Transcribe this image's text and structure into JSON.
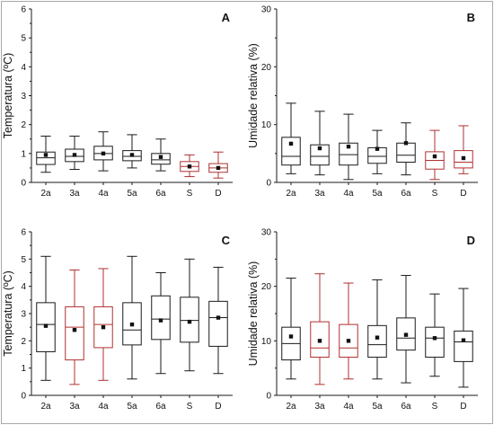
{
  "colors": {
    "black": "#1a1a1a",
    "red": "#b03030",
    "axis": "#1a1a1a",
    "mean": "#111111"
  },
  "chart_data": [
    {
      "type": "box",
      "panel_label": "A",
      "ylabel": "Temperatura (ºC)",
      "ylim": [
        0,
        6
      ],
      "yticks": [
        0,
        1,
        2,
        3,
        4,
        5,
        6
      ],
      "categories": [
        "2a",
        "3a",
        "4a",
        "5a",
        "6a",
        "S",
        "D"
      ],
      "box_colors": [
        "black",
        "black",
        "black",
        "black",
        "black",
        "red",
        "red"
      ],
      "boxes": [
        {
          "whisker_low": 0.35,
          "q1": 0.62,
          "median": 0.85,
          "q3": 1.05,
          "whisker_high": 1.6,
          "mean": 0.95
        },
        {
          "whisker_low": 0.45,
          "q1": 0.72,
          "median": 0.9,
          "q3": 1.15,
          "whisker_high": 1.6,
          "mean": 0.95
        },
        {
          "whisker_low": 0.4,
          "q1": 0.78,
          "median": 1.0,
          "q3": 1.25,
          "whisker_high": 1.75,
          "mean": 1.0
        },
        {
          "whisker_low": 0.5,
          "q1": 0.75,
          "median": 0.9,
          "q3": 1.1,
          "whisker_high": 1.65,
          "mean": 0.95
        },
        {
          "whisker_low": 0.4,
          "q1": 0.63,
          "median": 0.78,
          "q3": 1.0,
          "whisker_high": 1.5,
          "mean": 0.88
        },
        {
          "whisker_low": 0.2,
          "q1": 0.38,
          "median": 0.55,
          "q3": 0.72,
          "whisker_high": 0.95,
          "mean": 0.55
        },
        {
          "whisker_low": 0.15,
          "q1": 0.35,
          "median": 0.5,
          "q3": 0.65,
          "whisker_high": 1.05,
          "mean": 0.5
        }
      ]
    },
    {
      "type": "box",
      "panel_label": "B",
      "ylabel": "Umidade relativa (%)",
      "ylim": [
        0,
        30
      ],
      "yticks": [
        0,
        10,
        20,
        30
      ],
      "categories": [
        "2a",
        "3a",
        "4a",
        "5a",
        "6a",
        "S",
        "D"
      ],
      "box_colors": [
        "black",
        "black",
        "black",
        "black",
        "black",
        "red",
        "red"
      ],
      "boxes": [
        {
          "whisker_low": 1.5,
          "q1": 3.0,
          "median": 4.5,
          "q3": 7.8,
          "whisker_high": 13.7,
          "mean": 6.7
        },
        {
          "whisker_low": 1.3,
          "q1": 3.0,
          "median": 4.5,
          "q3": 6.5,
          "whisker_high": 12.3,
          "mean": 5.9
        },
        {
          "whisker_low": 0.5,
          "q1": 3.0,
          "median": 4.8,
          "q3": 6.8,
          "whisker_high": 11.8,
          "mean": 6.2
        },
        {
          "whisker_low": 1.5,
          "q1": 3.3,
          "median": 4.5,
          "q3": 6.0,
          "whisker_high": 9.0,
          "mean": 5.8
        },
        {
          "whisker_low": 1.3,
          "q1": 3.5,
          "median": 4.7,
          "q3": 6.8,
          "whisker_high": 10.3,
          "mean": 6.8
        },
        {
          "whisker_low": 0.5,
          "q1": 2.3,
          "median": 3.8,
          "q3": 5.3,
          "whisker_high": 9.0,
          "mean": 4.5
        },
        {
          "whisker_low": 1.5,
          "q1": 2.5,
          "median": 3.5,
          "q3": 5.5,
          "whisker_high": 9.8,
          "mean": 4.2
        }
      ]
    },
    {
      "type": "box",
      "panel_label": "C",
      "ylabel": "Temperatura (ºC)",
      "ylim": [
        0,
        6
      ],
      "yticks": [
        0,
        1,
        2,
        3,
        4,
        5,
        6
      ],
      "categories": [
        "2a",
        "3a",
        "4a",
        "5a",
        "6a",
        "S",
        "D"
      ],
      "box_colors": [
        "black",
        "red",
        "red",
        "black",
        "black",
        "black",
        "black"
      ],
      "boxes": [
        {
          "whisker_low": 0.55,
          "q1": 1.6,
          "median": 2.6,
          "q3": 3.4,
          "whisker_high": 5.1,
          "mean": 2.55
        },
        {
          "whisker_low": 0.4,
          "q1": 1.3,
          "median": 2.5,
          "q3": 3.25,
          "whisker_high": 4.6,
          "mean": 2.4
        },
        {
          "whisker_low": 0.55,
          "q1": 1.75,
          "median": 2.6,
          "q3": 3.25,
          "whisker_high": 4.65,
          "mean": 2.5
        },
        {
          "whisker_low": 0.6,
          "q1": 1.85,
          "median": 2.4,
          "q3": 3.4,
          "whisker_high": 5.1,
          "mean": 2.6
        },
        {
          "whisker_low": 0.8,
          "q1": 2.05,
          "median": 2.8,
          "q3": 3.65,
          "whisker_high": 4.5,
          "mean": 2.75
        },
        {
          "whisker_low": 0.9,
          "q1": 1.95,
          "median": 2.75,
          "q3": 3.6,
          "whisker_high": 5.0,
          "mean": 2.7
        },
        {
          "whisker_low": 0.8,
          "q1": 1.8,
          "median": 2.85,
          "q3": 3.45,
          "whisker_high": 4.7,
          "mean": 2.85
        }
      ]
    },
    {
      "type": "box",
      "panel_label": "D",
      "ylabel": "Umidade relativa (%)",
      "ylim": [
        0,
        30
      ],
      "yticks": [
        0,
        10,
        20,
        30
      ],
      "categories": [
        "2a",
        "3a",
        "4a",
        "5a",
        "6a",
        "S",
        "D"
      ],
      "box_colors": [
        "black",
        "red",
        "red",
        "black",
        "black",
        "black",
        "black"
      ],
      "boxes": [
        {
          "whisker_low": 3.0,
          "q1": 6.5,
          "median": 9.5,
          "q3": 12.5,
          "whisker_high": 21.5,
          "mean": 10.8
        },
        {
          "whisker_low": 2.0,
          "q1": 7.0,
          "median": 8.7,
          "q3": 13.5,
          "whisker_high": 22.3,
          "mean": 10.0
        },
        {
          "whisker_low": 3.0,
          "q1": 7.0,
          "median": 8.7,
          "q3": 13.0,
          "whisker_high": 20.6,
          "mean": 10.0
        },
        {
          "whisker_low": 3.0,
          "q1": 7.0,
          "median": 9.3,
          "q3": 12.8,
          "whisker_high": 21.2,
          "mean": 10.6
        },
        {
          "whisker_low": 2.3,
          "q1": 8.3,
          "median": 10.5,
          "q3": 14.2,
          "whisker_high": 22.0,
          "mean": 11.1
        },
        {
          "whisker_low": 3.5,
          "q1": 7.0,
          "median": 10.5,
          "q3": 12.5,
          "whisker_high": 18.6,
          "mean": 10.5
        },
        {
          "whisker_low": 1.5,
          "q1": 6.2,
          "median": 9.8,
          "q3": 11.8,
          "whisker_high": 19.6,
          "mean": 10.1
        }
      ]
    }
  ]
}
